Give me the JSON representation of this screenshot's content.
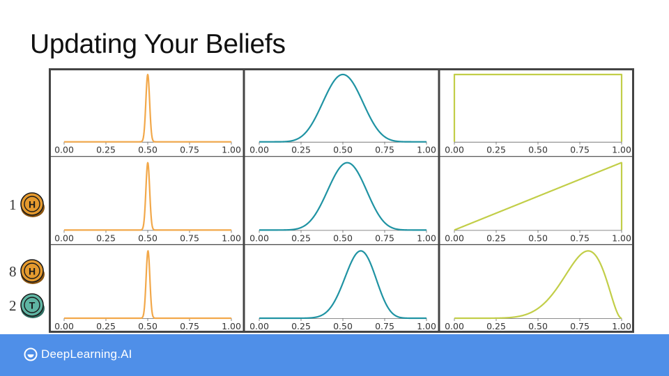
{
  "slide": {
    "title": "Updating Your Beliefs"
  },
  "rows": [
    {
      "coins": []
    },
    {
      "coins": [
        {
          "count": "1",
          "face": "H",
          "color": "#e59a2e"
        }
      ]
    },
    {
      "coins": [
        {
          "count": "8",
          "face": "H",
          "color": "#e59a2e"
        },
        {
          "count": "2",
          "face": "T",
          "color": "#5fb5a3"
        }
      ]
    }
  ],
  "columns": [
    {
      "color": "#f2a84a"
    },
    {
      "color": "#1f93a3"
    },
    {
      "color": "#c2ce48"
    }
  ],
  "colors": {
    "frame": "#444444",
    "footer": "#4f8fe8",
    "axis": "#666666"
  },
  "chart_data": {
    "type": "line",
    "layout": "3x3 grid of density plots",
    "x_ticks": [
      "0.00",
      "0.25",
      "0.50",
      "0.75",
      "1.00"
    ],
    "xlim": [
      0,
      1
    ],
    "grid": false,
    "panels": [
      {
        "row": 0,
        "col": 0,
        "distribution": "Beta(1000,1000)",
        "peak_x": 0.5
      },
      {
        "row": 0,
        "col": 1,
        "distribution": "Beta(10,10)",
        "peak_x": 0.5
      },
      {
        "row": 0,
        "col": 2,
        "distribution": "Beta(1,1)",
        "peak_x": null
      },
      {
        "row": 1,
        "col": 0,
        "distribution": "Beta(1001,1000)",
        "peak_x": 0.5
      },
      {
        "row": 1,
        "col": 1,
        "distribution": "Beta(11,10)",
        "peak_x": 0.53
      },
      {
        "row": 1,
        "col": 2,
        "distribution": "Beta(2,1)",
        "peak_x": 1.0
      },
      {
        "row": 2,
        "col": 0,
        "distribution": "Beta(1008,1002)",
        "peak_x": 0.5
      },
      {
        "row": 2,
        "col": 1,
        "distribution": "Beta(18,12)",
        "peak_x": 0.6
      },
      {
        "row": 2,
        "col": 2,
        "distribution": "Beta(9,3)",
        "peak_x": 0.8
      }
    ]
  },
  "footer": {
    "logo_text": "DeepLearning.AI"
  }
}
